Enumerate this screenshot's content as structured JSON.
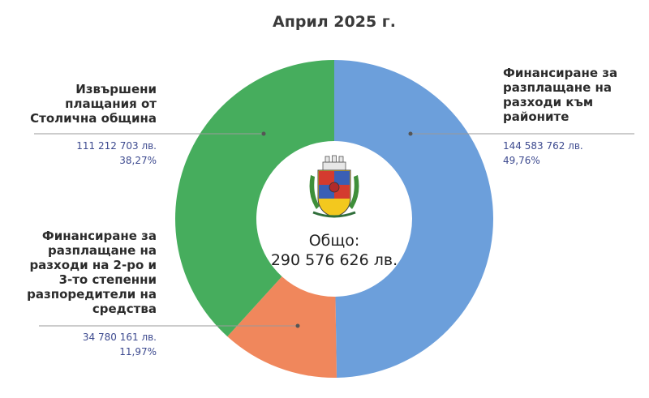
{
  "chart_data": {
    "type": "pie",
    "variant": "donut",
    "title": "Април  2025 г.",
    "center_label": [
      "Общо:",
      "290 576 626 лв."
    ],
    "slices": [
      {
        "label_lines": [
          "Финансиране за",
          "разплащане на",
          "разходи към",
          "районите"
        ],
        "amount": "144 583 762 лв.",
        "percent_text": "49,76%",
        "value": 144583762,
        "color": "#6c9fdb"
      },
      {
        "label_lines": [
          "Финансиране за",
          "разплащане на",
          "разходи на 2-ро и",
          "3-то степенни",
          "разпоредители на",
          "средства"
        ],
        "amount": "34 780 161 лв.",
        "percent_text": "11,97%",
        "value": 34780161,
        "color": "#f0875c"
      },
      {
        "label_lines": [
          "Извършени",
          "плащания от",
          "Столична община"
        ],
        "amount": "111 212 703 лв.",
        "percent_text": "38,27%",
        "value": 111212703,
        "color": "#46ad5d"
      }
    ]
  },
  "center_icon": "sofia-coat-of-arms-icon"
}
